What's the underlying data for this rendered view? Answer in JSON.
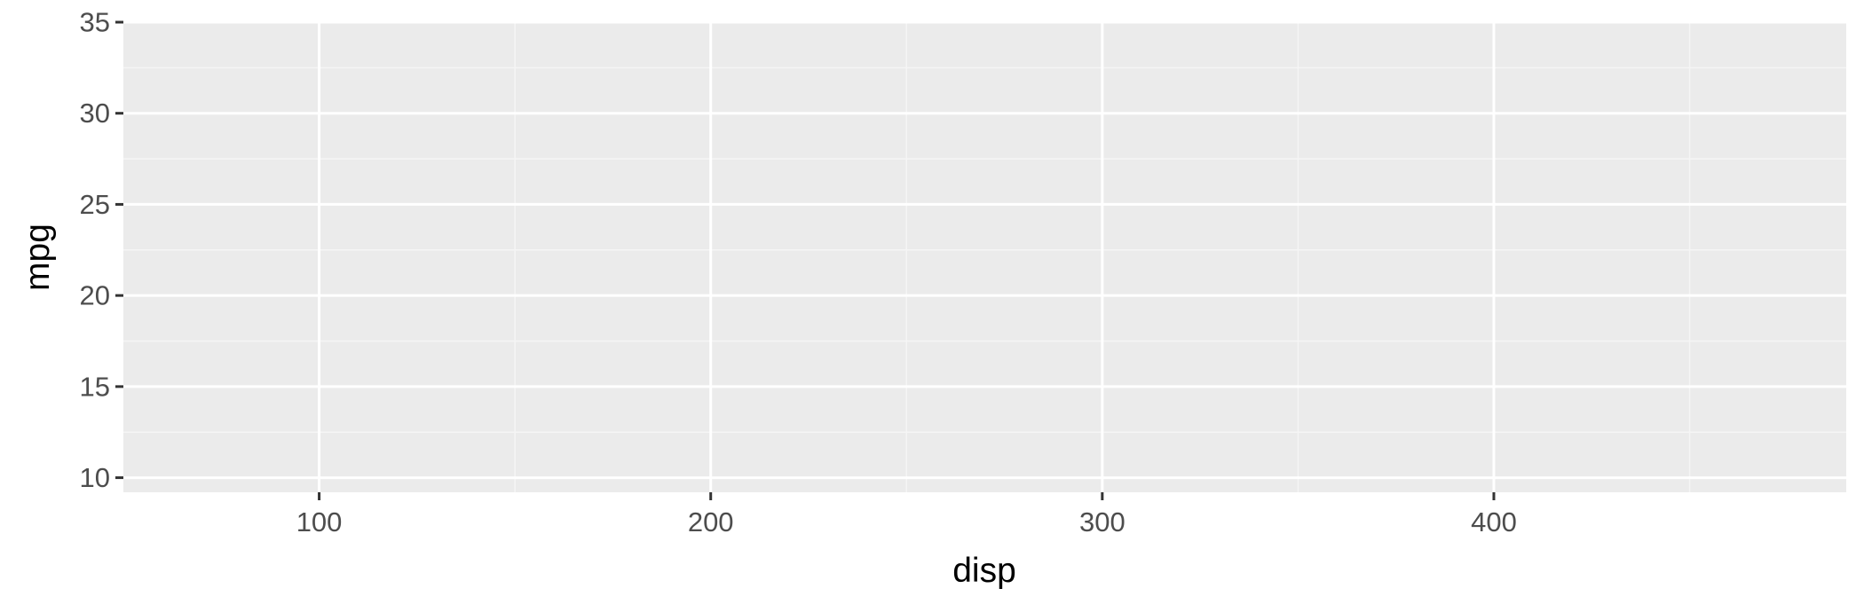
{
  "chart_data": {
    "type": "scatter",
    "title": "",
    "xlabel": "disp",
    "ylabel": "mpg",
    "xlim": [
      50,
      490
    ],
    "ylim": [
      9.2,
      35
    ],
    "x_ticks": [
      100,
      200,
      300,
      400
    ],
    "x_tick_labels": [
      "100",
      "200",
      "300",
      "400"
    ],
    "x_minor_ticks": [
      150,
      250,
      350,
      450
    ],
    "y_ticks": [
      10,
      15,
      20,
      25,
      30,
      35
    ],
    "y_tick_labels": [
      "10",
      "15",
      "20",
      "25",
      "30",
      "35"
    ],
    "y_minor_ticks": [
      12.5,
      17.5,
      22.5,
      27.5,
      32.5
    ],
    "series": [],
    "grid": true,
    "legend": "none",
    "colors": {
      "panel_background": "#ebebeb",
      "grid_major": "#ffffff",
      "grid_minor": "#f5f5f5",
      "tick_mark": "#333333",
      "tick_label": "#4d4d4d",
      "axis_title": "#000000"
    }
  }
}
